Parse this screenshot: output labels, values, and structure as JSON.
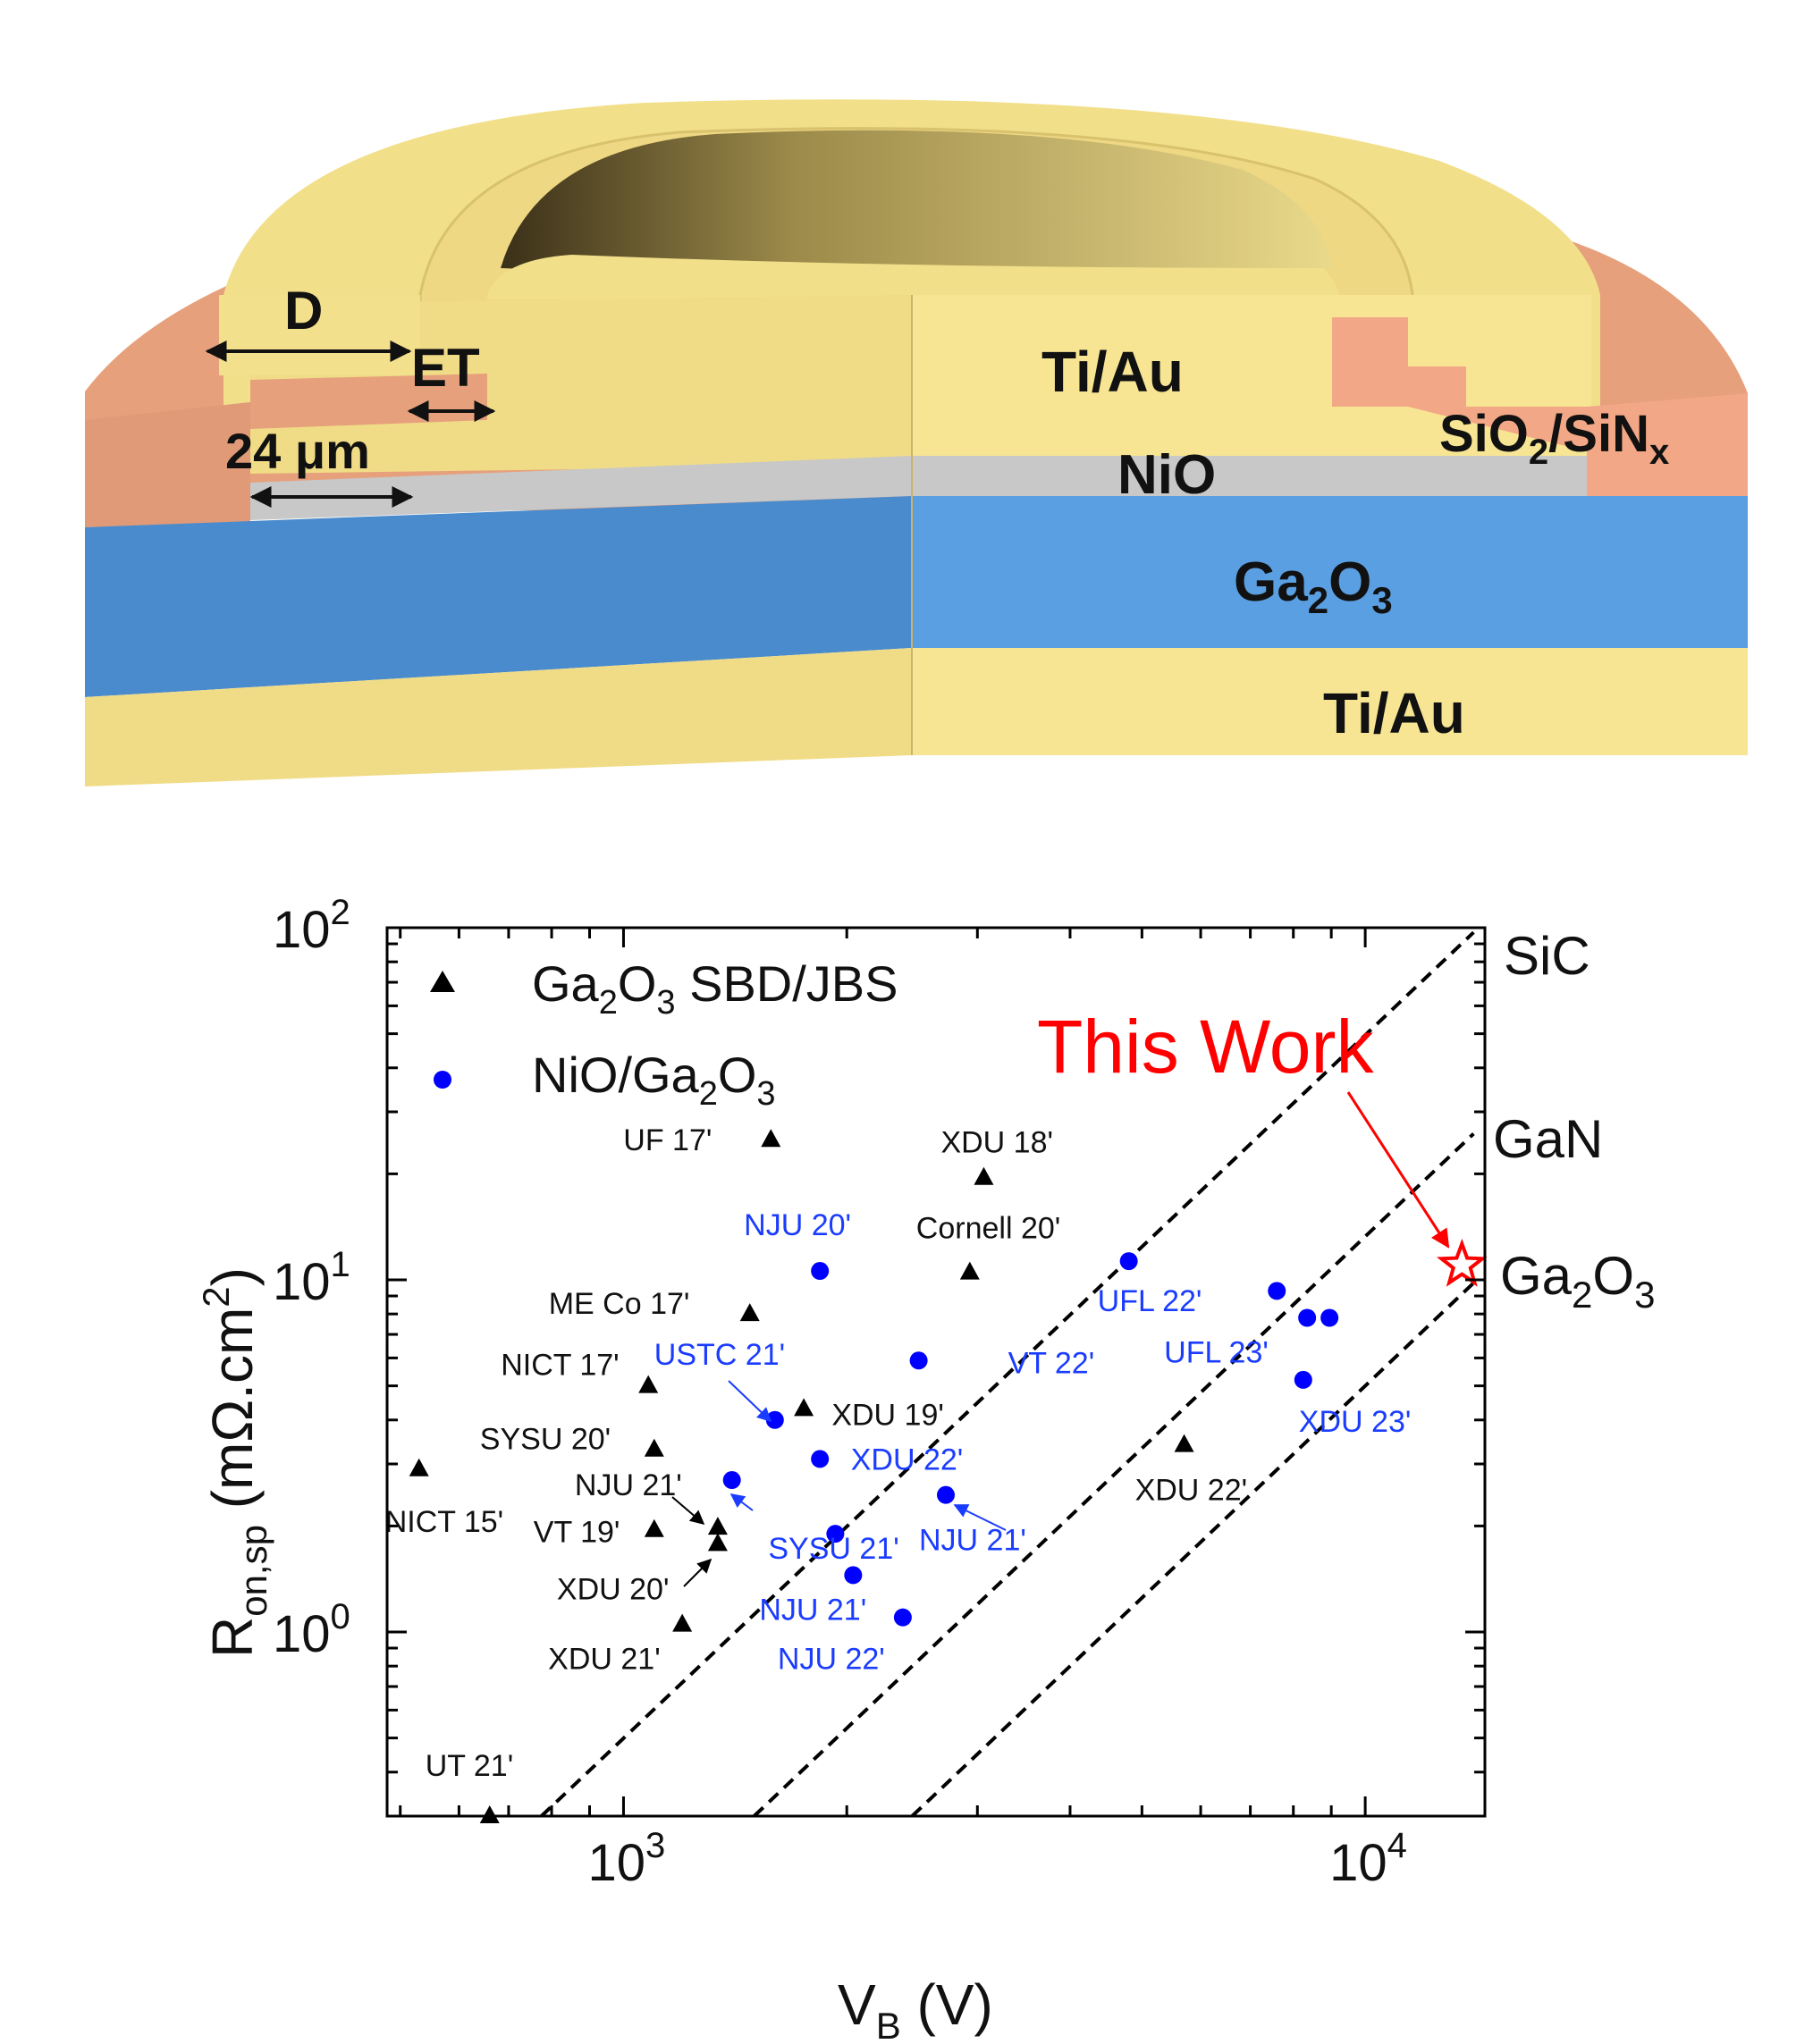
{
  "device": {
    "labels": {
      "top_metal": "Ti/Au",
      "nio": "NiO",
      "passivation_main": "SiO",
      "passivation_sub1": "2",
      "passivation_mid": "/SiN",
      "passivation_sub2": "x",
      "substrate_main": "Ga",
      "substrate_sub1": "2",
      "substrate_mid": "O",
      "substrate_sub2": "3",
      "bottom_metal": "Ti/Au",
      "dim_d": "D",
      "dim_et": "ET",
      "dim_width": "24 μm"
    },
    "colors": {
      "metal": "#f2df8a",
      "passivation": "#e8a27e",
      "nio": "#c6c6c6",
      "ga2o3": "#4d93d8"
    }
  },
  "chart_data": {
    "type": "scatter",
    "xscale": "log",
    "yscale": "log",
    "xlim": [
      480,
      14500
    ],
    "ylim": [
      0.3,
      100
    ],
    "xlabel_main": "V",
    "xlabel_sub": "B",
    "xlabel_unit": " (V)",
    "ylabel_main": "R",
    "ylabel_sub": "on,sp",
    "ylabel_unit": " (mΩ.cm",
    "ylabel_sup": "2",
    "ylabel_close": ")",
    "xticks": [
      {
        "value": 1000,
        "base": "10",
        "exp": "3"
      },
      {
        "value": 10000,
        "base": "10",
        "exp": "4"
      }
    ],
    "yticks": [
      {
        "value": 1,
        "base": "10",
        "exp": "0"
      },
      {
        "value": 10,
        "base": "10",
        "exp": "1"
      },
      {
        "value": 100,
        "base": "10",
        "exp": "2"
      }
    ],
    "legend": {
      "placement": "top-left",
      "items": [
        {
          "symbol": "triangle",
          "color": "#000000",
          "text": "Ga",
          "sub1": "2",
          "mid": "O",
          "sub2": "3",
          "tail": " SBD/JBS"
        },
        {
          "symbol": "circle",
          "color": "#0000ff",
          "text": "NiO/Ga",
          "sub1": "2",
          "mid": "O",
          "sub2": "3",
          "tail": ""
        }
      ]
    },
    "limit_lines": [
      {
        "name": "SiC",
        "x_start": 775,
        "y_start": 0.3,
        "x_end": 14000,
        "y_end": 97
      },
      {
        "name": "GaN",
        "x_start": 1500,
        "y_start": 0.3,
        "x_end": 14000,
        "y_end": 26
      },
      {
        "name": "Ga",
        "sub1": "2",
        "mid": "O",
        "sub2": "3",
        "x_start": 2450,
        "y_start": 0.3,
        "x_end": 14000,
        "y_end": 9.8
      }
    ],
    "series": [
      {
        "name": "Ga2O3 SBD/JBS",
        "marker": "triangle",
        "color": "#000000",
        "points": [
          {
            "x": 530,
            "y": 2.9,
            "label": "NICT 15'"
          },
          {
            "x": 660,
            "y": 0.3,
            "label": "UT 21'"
          },
          {
            "x": 1080,
            "y": 5.0,
            "label": "NICT 17'"
          },
          {
            "x": 1100,
            "y": 3.3,
            "label": "SYSU 20'"
          },
          {
            "x": 1100,
            "y": 1.95,
            "label": "VT 19'"
          },
          {
            "x": 1200,
            "y": 1.05,
            "label": "XDU 21'"
          },
          {
            "x": 1340,
            "y": 1.98,
            "label": "NJU 21'"
          },
          {
            "x": 1340,
            "y": 1.78,
            "label": "XDU 20'"
          },
          {
            "x": 1480,
            "y": 8.0,
            "label": "ME Co 17'"
          },
          {
            "x": 1580,
            "y": 25.0,
            "label": "UF 17'"
          },
          {
            "x": 1750,
            "y": 4.3,
            "label": ""
          },
          {
            "x": 2930,
            "y": 10.5,
            "label": "Cornell 20'"
          },
          {
            "x": 3060,
            "y": 19.5,
            "label": "XDU 18'"
          },
          {
            "x": 5700,
            "y": 3.4,
            "label": "XDU 22'"
          }
        ],
        "plain_labels": [
          {
            "text": "XDU 19'",
            "x": 2450,
            "y": 4.15
          }
        ]
      },
      {
        "name": "NiO/Ga2O3",
        "marker": "circle",
        "color": "#0000ff",
        "points": [
          {
            "x": 1400,
            "y": 2.7,
            "label": ""
          },
          {
            "x": 1600,
            "y": 4.0,
            "label": "USTC 21'"
          },
          {
            "x": 1840,
            "y": 10.6,
            "label": "NJU 20'"
          },
          {
            "x": 1840,
            "y": 3.1,
            "label": ""
          },
          {
            "x": 1930,
            "y": 1.9,
            "label": "SYSU 21'"
          },
          {
            "x": 2040,
            "y": 1.45,
            "label": "NJU 21'"
          },
          {
            "x": 2380,
            "y": 1.1,
            "label": "NJU 22'"
          },
          {
            "x": 2500,
            "y": 5.9,
            "label": "VT 22'"
          },
          {
            "x": 2720,
            "y": 2.45,
            "label": "NJU 21'"
          },
          {
            "x": 4800,
            "y": 11.3,
            "label": "UFL 22'"
          },
          {
            "x": 7600,
            "y": 9.3,
            "label": ""
          },
          {
            "x": 8350,
            "y": 7.8,
            "label": "UFL 23'"
          },
          {
            "x": 8950,
            "y": 7.8,
            "label": ""
          },
          {
            "x": 8250,
            "y": 5.2,
            "label": "XDU 23'"
          }
        ],
        "plain_labels": [
          {
            "text": "XDU 22'",
            "x": 2600,
            "y": 3.1
          }
        ]
      },
      {
        "name": "This Work",
        "marker": "star",
        "color": "#ff0000",
        "points": [
          {
            "x": 13500,
            "y": 11.0,
            "label": "This Work"
          }
        ]
      }
    ]
  }
}
